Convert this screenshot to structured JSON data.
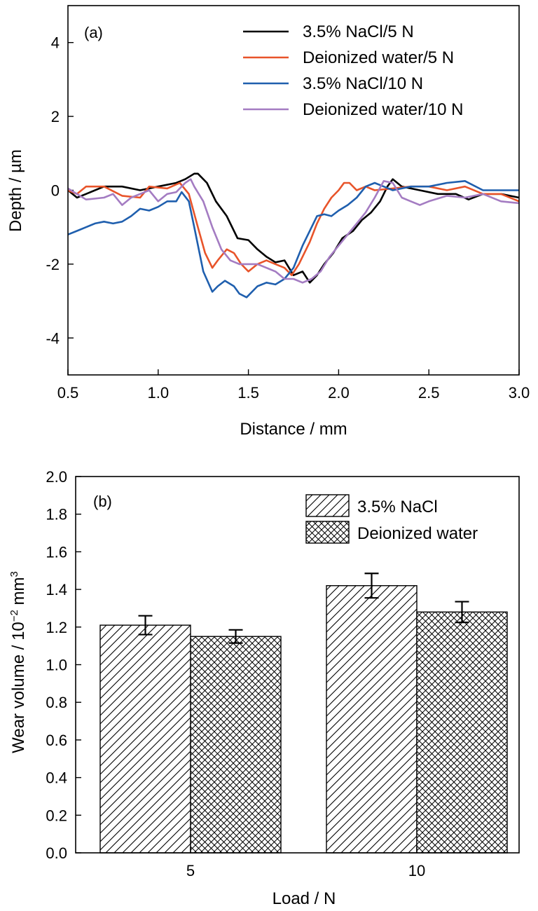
{
  "figure": {
    "colors": {
      "black": "#000000",
      "orange": "#e8542a",
      "blue": "#1f5fae",
      "purple": "#a47cc2"
    }
  },
  "chart_data": [
    {
      "type": "line",
      "panel_label": "(a)",
      "xlabel": "Distance / mm",
      "ylabel": "Depth / µm",
      "xlim": [
        0.5,
        3.0
      ],
      "ylim": [
        -5,
        5
      ],
      "xticks": [
        "0.5",
        "1.0",
        "1.5",
        "2.0",
        "2.5",
        "3.0"
      ],
      "yticks": [
        "4",
        "2",
        "0",
        "-2",
        "-4"
      ],
      "ytick_values": [
        4,
        2,
        0,
        -2,
        -4
      ],
      "xtick_values": [
        0.5,
        1.0,
        1.5,
        2.0,
        2.5,
        3.0
      ],
      "legend_position": "top-right",
      "series": [
        {
          "name": "3.5% NaCl/5 N",
          "color": "#000000",
          "x": [
            0.5,
            0.55,
            0.6,
            0.7,
            0.8,
            0.9,
            1.0,
            1.1,
            1.15,
            1.2,
            1.22,
            1.27,
            1.32,
            1.38,
            1.44,
            1.5,
            1.55,
            1.6,
            1.65,
            1.7,
            1.75,
            1.8,
            1.84,
            1.88,
            1.92,
            1.97,
            2.02,
            2.08,
            2.13,
            2.18,
            2.23,
            2.27,
            2.3,
            2.35,
            2.45,
            2.55,
            2.65,
            2.72,
            2.8,
            2.9,
            3.0
          ],
          "y": [
            0.0,
            -0.2,
            -0.1,
            0.1,
            0.1,
            0.0,
            0.1,
            0.2,
            0.3,
            0.45,
            0.45,
            0.2,
            -0.3,
            -0.7,
            -1.3,
            -1.35,
            -1.6,
            -1.8,
            -1.95,
            -1.9,
            -2.3,
            -2.2,
            -2.5,
            -2.3,
            -2.0,
            -1.7,
            -1.3,
            -1.1,
            -0.8,
            -0.6,
            -0.3,
            0.1,
            0.3,
            0.1,
            0.0,
            -0.1,
            -0.1,
            -0.25,
            -0.1,
            -0.1,
            -0.2
          ]
        },
        {
          "name": "Deionized water/5 N",
          "color": "#e8542a",
          "x": [
            0.5,
            0.55,
            0.6,
            0.7,
            0.8,
            0.9,
            0.95,
            1.05,
            1.12,
            1.17,
            1.22,
            1.26,
            1.3,
            1.33,
            1.38,
            1.42,
            1.46,
            1.5,
            1.55,
            1.6,
            1.65,
            1.7,
            1.74,
            1.78,
            1.84,
            1.88,
            1.92,
            1.96,
            2.0,
            2.03,
            2.06,
            2.1,
            2.15,
            2.2,
            2.3,
            2.4,
            2.5,
            2.6,
            2.7,
            2.8,
            2.9,
            3.0
          ],
          "y": [
            0.0,
            -0.1,
            0.1,
            0.1,
            -0.15,
            -0.2,
            0.1,
            0.05,
            0.2,
            -0.1,
            -1.0,
            -1.7,
            -2.1,
            -1.9,
            -1.6,
            -1.7,
            -2.0,
            -2.2,
            -2.0,
            -1.9,
            -2.0,
            -2.1,
            -2.3,
            -2.0,
            -1.4,
            -0.9,
            -0.5,
            -0.2,
            0.0,
            0.2,
            0.2,
            0.0,
            0.1,
            0.0,
            0.05,
            0.1,
            0.1,
            0.0,
            0.1,
            -0.1,
            -0.1,
            -0.3
          ]
        },
        {
          "name": "3.5% NaCl/10 N",
          "color": "#1f5fae",
          "x": [
            0.5,
            0.55,
            0.6,
            0.65,
            0.7,
            0.75,
            0.8,
            0.85,
            0.9,
            0.95,
            1.0,
            1.05,
            1.1,
            1.13,
            1.17,
            1.2,
            1.25,
            1.3,
            1.33,
            1.37,
            1.42,
            1.45,
            1.49,
            1.55,
            1.6,
            1.65,
            1.7,
            1.75,
            1.8,
            1.85,
            1.88,
            1.92,
            1.96,
            2.0,
            2.05,
            2.1,
            2.15,
            2.2,
            2.25,
            2.3,
            2.4,
            2.5,
            2.6,
            2.7,
            2.8,
            2.9,
            3.0
          ],
          "y": [
            -1.2,
            -1.1,
            -1.0,
            -0.9,
            -0.85,
            -0.9,
            -0.85,
            -0.7,
            -0.5,
            -0.55,
            -0.45,
            -0.3,
            -0.3,
            -0.05,
            -0.3,
            -1.0,
            -2.2,
            -2.75,
            -2.6,
            -2.45,
            -2.6,
            -2.8,
            -2.9,
            -2.6,
            -2.5,
            -2.55,
            -2.4,
            -2.1,
            -1.5,
            -1.0,
            -0.7,
            -0.65,
            -0.7,
            -0.55,
            -0.4,
            -0.2,
            0.1,
            0.2,
            0.1,
            0.0,
            0.1,
            0.1,
            0.2,
            0.25,
            0.0,
            0.0,
            0.0
          ]
        },
        {
          "name": "Deionized water/10 N",
          "color": "#a47cc2",
          "x": [
            0.5,
            0.55,
            0.6,
            0.7,
            0.75,
            0.8,
            0.85,
            0.9,
            0.95,
            1.0,
            1.05,
            1.1,
            1.15,
            1.18,
            1.2,
            1.25,
            1.3,
            1.35,
            1.4,
            1.45,
            1.5,
            1.55,
            1.6,
            1.65,
            1.7,
            1.75,
            1.8,
            1.85,
            1.9,
            1.95,
            2.0,
            2.05,
            2.1,
            2.15,
            2.2,
            2.25,
            2.3,
            2.35,
            2.4,
            2.45,
            2.5,
            2.6,
            2.7,
            2.8,
            2.9,
            3.0
          ],
          "y": [
            0.05,
            -0.1,
            -0.25,
            -0.2,
            -0.1,
            -0.4,
            -0.2,
            -0.1,
            0.0,
            -0.3,
            -0.1,
            -0.05,
            0.2,
            0.3,
            0.1,
            -0.3,
            -1.0,
            -1.6,
            -1.9,
            -2.0,
            -2.0,
            -2.0,
            -2.1,
            -2.2,
            -2.4,
            -2.4,
            -2.5,
            -2.4,
            -2.2,
            -1.8,
            -1.5,
            -1.2,
            -0.9,
            -0.6,
            -0.2,
            0.25,
            0.2,
            -0.2,
            -0.3,
            -0.4,
            -0.3,
            -0.15,
            -0.2,
            -0.1,
            -0.3,
            -0.35
          ]
        }
      ]
    },
    {
      "type": "bar",
      "panel_label": "(b)",
      "xlabel": "Load / N",
      "ylabel": "Wear volume / 10",
      "ylabel_exponent": "−2",
      "ylabel_unit": " mm",
      "ylabel_unit_exponent": "3",
      "categories": [
        "5",
        "10"
      ],
      "ylim": [
        0.0,
        2.0
      ],
      "yticks": [
        "0.0",
        "0.2",
        "0.4",
        "0.6",
        "0.8",
        "1.0",
        "1.2",
        "1.4",
        "1.6",
        "1.8",
        "2.0"
      ],
      "ytick_values": [
        0.0,
        0.2,
        0.4,
        0.6,
        0.8,
        1.0,
        1.2,
        1.4,
        1.6,
        1.8,
        2.0
      ],
      "legend_position": "top-right",
      "series": [
        {
          "name": "3.5% NaCl",
          "pattern": "diagonal-hatch",
          "values": [
            1.21,
            1.42
          ],
          "errors": [
            0.05,
            0.065
          ]
        },
        {
          "name": "Deionized water",
          "pattern": "cross-hatch",
          "values": [
            1.15,
            1.28
          ],
          "errors": [
            0.035,
            0.055
          ]
        }
      ]
    }
  ]
}
